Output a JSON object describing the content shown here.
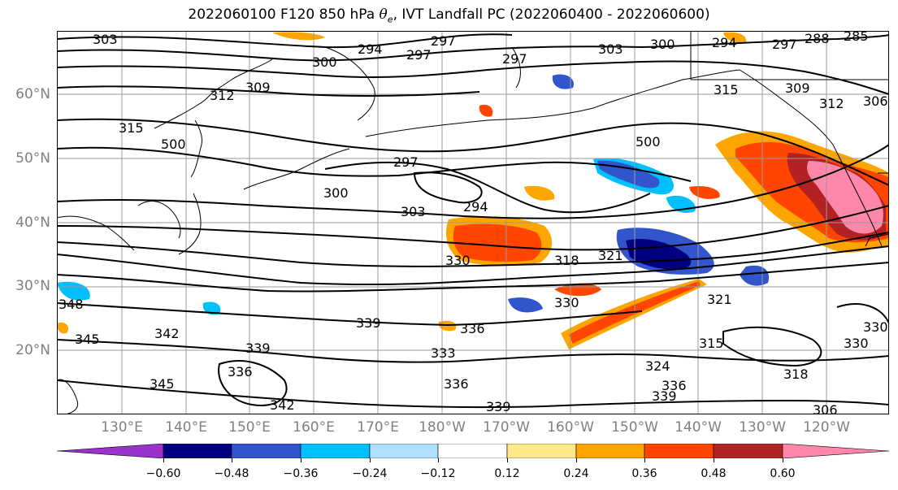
{
  "title": {
    "main": "2022060100 F120 850 hPa ",
    "theta": "θ",
    "theta_sub": "e",
    "rest": ", IVT Landfall PC (2022060400 - 2022060600)"
  },
  "lat_labels": [
    "60°N",
    "50°N",
    "40°N",
    "30°N",
    "20°N"
  ],
  "lon_labels": [
    "130°E",
    "140°E",
    "150°E",
    "160°E",
    "170°E",
    "180°W",
    "170°W",
    "160°W",
    "150°W",
    "140°W",
    "130°W",
    "120°W"
  ],
  "colorbar": {
    "ticks": [
      "−0.60",
      "−0.48",
      "−0.36",
      "−0.24",
      "−0.12",
      "0.12",
      "0.24",
      "0.36",
      "0.48",
      "0.60"
    ],
    "colors": [
      "#9933cc",
      "#000080",
      "#3355cc",
      "#00bfff",
      "#b0e0ff",
      "#ffffff",
      "#ffe888",
      "#ffa500",
      "#ff4500",
      "#b22222",
      "#ff88aa"
    ]
  },
  "contour_labels": [
    "303",
    "300",
    "294",
    "297",
    "297",
    "297",
    "288",
    "285",
    "303",
    "300",
    "294",
    "297",
    "315",
    "309",
    "312",
    "306",
    "309",
    "312",
    "315",
    "500",
    "500",
    "297",
    "300",
    "294",
    "303",
    "330",
    "318",
    "321",
    "330",
    "321",
    "348",
    "345",
    "342",
    "345",
    "339",
    "339",
    "333",
    "336",
    "336",
    "342",
    "339",
    "324",
    "336",
    "339",
    "315",
    "318",
    "330",
    "306",
    "336",
    "330"
  ]
}
